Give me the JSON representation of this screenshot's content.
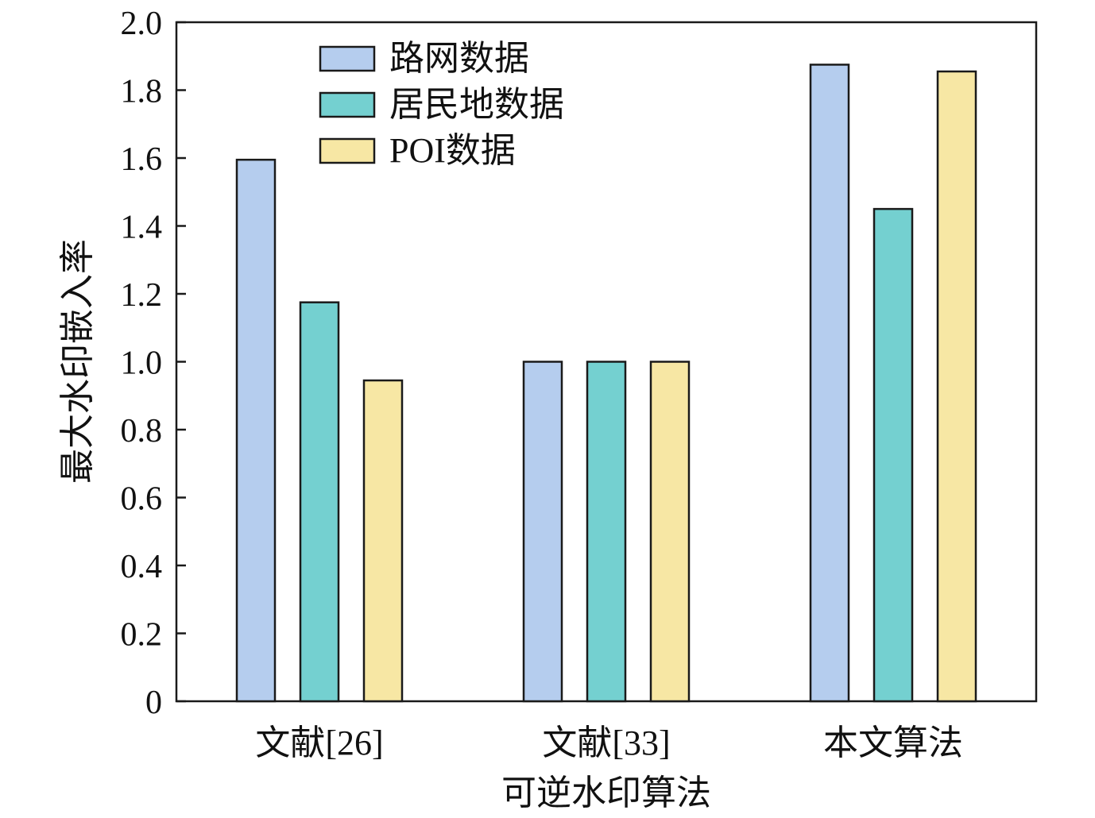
{
  "chart_data": {
    "type": "bar",
    "title": "",
    "xlabel": "可逆水印算法",
    "ylabel": "最大水印嵌入率",
    "categories": [
      "文献[26]",
      "文献[33]",
      "本文算法"
    ],
    "series": [
      {
        "name": "路网数据",
        "color": "#b5cdee",
        "values": [
          1.595,
          1.0,
          1.875
        ]
      },
      {
        "name": "居民地数据",
        "color": "#74d0d0",
        "values": [
          1.175,
          1.0,
          1.45
        ]
      },
      {
        "name": "POI数据",
        "color": "#f7e7a4",
        "values": [
          0.945,
          1.0,
          1.855
        ]
      }
    ],
    "ylim": [
      0,
      2.0
    ],
    "yticks": [
      0,
      0.2,
      0.4,
      0.6,
      0.8,
      1.0,
      1.2,
      1.4,
      1.6,
      1.8,
      2.0
    ],
    "ytick_labels": [
      "0",
      "0.2",
      "0.4",
      "0.6",
      "0.8",
      "1.0",
      "1.2",
      "1.4",
      "1.6",
      "1.8",
      "2.0"
    ],
    "grid": false,
    "legend_position": "top-left"
  }
}
